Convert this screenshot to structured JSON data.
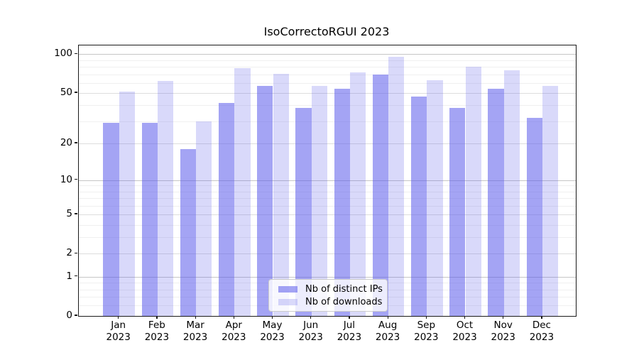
{
  "chart_data": {
    "type": "bar",
    "title": "IsoCorrectoRGUI 2023",
    "categories": [
      "Jan",
      "Feb",
      "Mar",
      "Apr",
      "May",
      "Jun",
      "Jul",
      "Aug",
      "Sep",
      "Oct",
      "Nov",
      "Dec"
    ],
    "category_year": "2023",
    "series": [
      {
        "name": "Nb of distinct IPs",
        "color": "rgba(90,90,235,0.55)",
        "values": [
          29,
          29,
          18,
          42,
          57,
          38,
          54,
          70,
          47,
          38,
          54,
          32
        ]
      },
      {
        "name": "Nb of downloads",
        "color": "rgba(90,90,235,0.23)",
        "values": [
          51,
          62,
          30,
          78,
          71,
          57,
          72,
          96,
          63,
          80,
          75,
          57
        ]
      }
    ],
    "xlabel": "",
    "ylabel": "",
    "yscale": "log1p",
    "ylim": [
      0,
      117
    ],
    "grid": true,
    "legend_position": "lower-center-inside",
    "y_ticks": [
      {
        "value": 0,
        "label": "0",
        "level": "baseline"
      },
      {
        "value": 1,
        "label": "1",
        "level": "major"
      },
      {
        "value": 2,
        "label": "2",
        "level": "mid"
      },
      {
        "value": 5,
        "label": "5",
        "level": "mid"
      },
      {
        "value": 10,
        "label": "10",
        "level": "major"
      },
      {
        "value": 20,
        "label": "20",
        "level": "mid"
      },
      {
        "value": 50,
        "label": "50",
        "level": "mid"
      },
      {
        "value": 100,
        "label": "100",
        "level": "major"
      }
    ],
    "y_minor_gridlines": [
      0.2,
      0.4,
      0.6,
      0.8,
      3,
      4,
      6,
      7,
      8,
      9,
      30,
      40,
      60,
      70,
      80,
      90
    ]
  }
}
